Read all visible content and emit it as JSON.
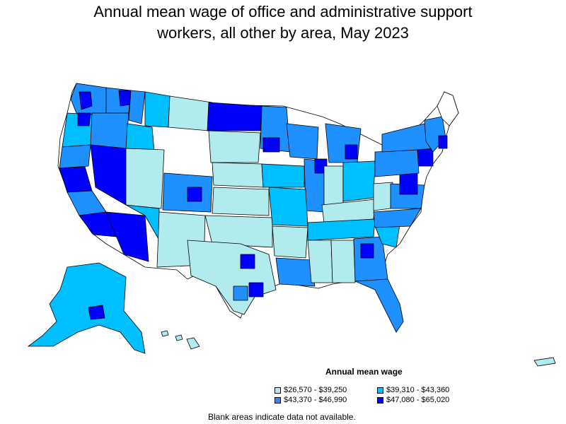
{
  "title": {
    "line1": "Annual mean wage of office and administrative support",
    "line2": "workers, all other by area, May 2023"
  },
  "legend": {
    "title": "Annual mean wage",
    "items": [
      {
        "label": "$26,570 - $39,250",
        "color": "#b2ebee"
      },
      {
        "label": "$39,310 - $43,360",
        "color": "#00bfff"
      },
      {
        "label": "$43,370 - $46,990",
        "color": "#1e90ff"
      },
      {
        "label": "$47,080 - $65,020",
        "color": "#0000ff"
      }
    ]
  },
  "note": "Blank areas indicate data not available."
}
